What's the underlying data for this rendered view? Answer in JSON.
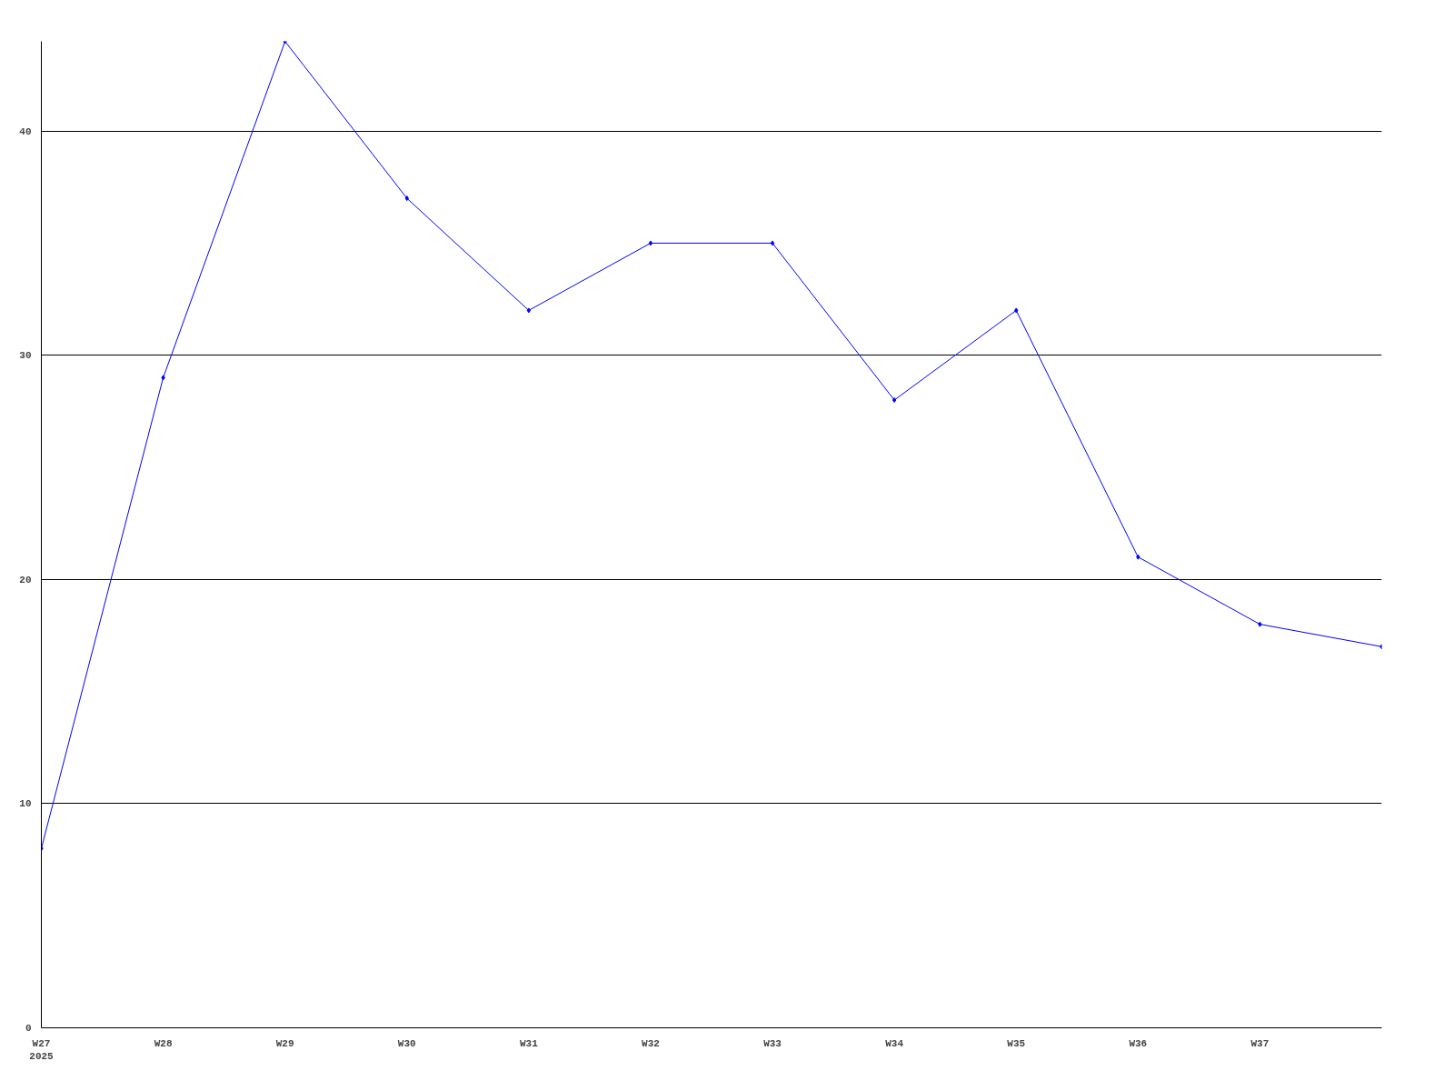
{
  "chart_data": {
    "type": "line",
    "categories": [
      "W27\n2025",
      "W28",
      "W29",
      "W30",
      "W31",
      "W32",
      "W33",
      "W34",
      "W35",
      "W36",
      "W37",
      null
    ],
    "series": [
      {
        "color": "#0000ff",
        "values": [
          8,
          29,
          44,
          37,
          32,
          35,
          35,
          28,
          32,
          21,
          18,
          17
        ]
      }
    ],
    "ylim": [
      0,
      44
    ],
    "yticks": [
      0,
      10,
      20,
      30,
      40
    ],
    "grid": "y",
    "marker": "diamond",
    "line_style": "solid"
  }
}
